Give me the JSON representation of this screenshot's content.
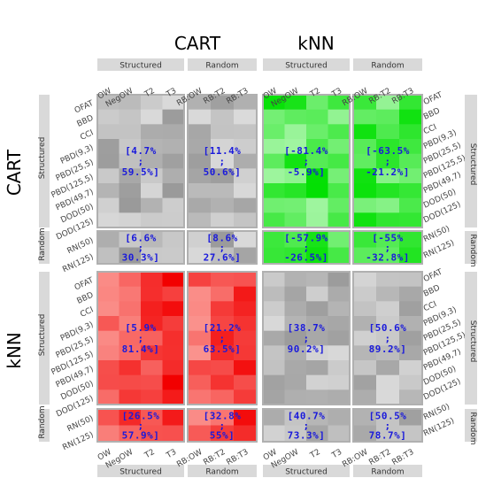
{
  "chart_data": {
    "type": "heatmap",
    "title": "",
    "column_models": [
      "CART",
      "kNN"
    ],
    "row_models": [
      "CART",
      "kNN"
    ],
    "method_groups": [
      "Structured",
      "Random"
    ],
    "columns_structured": [
      "OW",
      "NegOW",
      "T2",
      "T3"
    ],
    "columns_random": [
      "RB:OW",
      "RB:T2",
      "RB:T3"
    ],
    "rows_structured": [
      "OFAT",
      "BBD",
      "CCI",
      "PBD(9,3)",
      "PBD(25,5)",
      "PBD(125,5)",
      "PBD(49,7)",
      "DOD(50)",
      "DOD(125)"
    ],
    "rows_random": [
      "RN(50)",
      "RN(125)"
    ],
    "blocks": [
      {
        "row_model": "CART",
        "row_group": "Structured",
        "col_model": "CART",
        "col_group": "Structured",
        "low": "4.7%",
        "high": "59.5%",
        "scale": "gray"
      },
      {
        "row_model": "CART",
        "row_group": "Structured",
        "col_model": "CART",
        "col_group": "Random",
        "low": "11.4%",
        "high": "50.6%",
        "scale": "gray"
      },
      {
        "row_model": "CART",
        "row_group": "Structured",
        "col_model": "kNN",
        "col_group": "Structured",
        "low": "-81.4%",
        "high": "-5.9%",
        "scale": "green"
      },
      {
        "row_model": "CART",
        "row_group": "Structured",
        "col_model": "kNN",
        "col_group": "Random",
        "low": "-63.5%",
        "high": "-21.2%",
        "scale": "green"
      },
      {
        "row_model": "CART",
        "row_group": "Random",
        "col_model": "CART",
        "col_group": "Structured",
        "low": "6.6%",
        "high": "30.3%",
        "scale": "gray"
      },
      {
        "row_model": "CART",
        "row_group": "Random",
        "col_model": "CART",
        "col_group": "Random",
        "low": "8.6%",
        "high": "27.6%",
        "scale": "gray"
      },
      {
        "row_model": "CART",
        "row_group": "Random",
        "col_model": "kNN",
        "col_group": "Structured",
        "low": "-57.9%",
        "high": "-26.5%",
        "scale": "green"
      },
      {
        "row_model": "CART",
        "row_group": "Random",
        "col_model": "kNN",
        "col_group": "Random",
        "low": "-55%",
        "high": "-32.8%",
        "scale": "green"
      },
      {
        "row_model": "kNN",
        "row_group": "Structured",
        "col_model": "CART",
        "col_group": "Structured",
        "low": "5.9%",
        "high": "81.4%",
        "scale": "red"
      },
      {
        "row_model": "kNN",
        "row_group": "Structured",
        "col_model": "CART",
        "col_group": "Random",
        "low": "21.2%",
        "high": "63.5%",
        "scale": "red"
      },
      {
        "row_model": "kNN",
        "row_group": "Structured",
        "col_model": "kNN",
        "col_group": "Structured",
        "low": "38.7%",
        "high": "90.2%",
        "scale": "gray"
      },
      {
        "row_model": "kNN",
        "row_group": "Structured",
        "col_model": "kNN",
        "col_group": "Random",
        "low": "50.6%",
        "high": "89.2%",
        "scale": "gray"
      },
      {
        "row_model": "kNN",
        "row_group": "Random",
        "col_model": "CART",
        "col_group": "Structured",
        "low": "26.5%",
        "high": "57.9%",
        "scale": "red"
      },
      {
        "row_model": "kNN",
        "row_group": "Random",
        "col_model": "CART",
        "col_group": "Random",
        "low": "32.8%",
        "high": "55%",
        "scale": "red"
      },
      {
        "row_model": "kNN",
        "row_group": "Random",
        "col_model": "kNN",
        "col_group": "Structured",
        "low": "40.7%",
        "high": "73.3%",
        "scale": "gray"
      },
      {
        "row_model": "kNN",
        "row_group": "Random",
        "col_model": "kNN",
        "col_group": "Random",
        "low": "50.5%",
        "high": "78.7%",
        "scale": "gray"
      }
    ],
    "colors": {
      "strip": "#d9d9d9",
      "block_border": "#b0b0b0",
      "block_label": "#1a1adb",
      "gray_low": "#f5f5f5",
      "gray_high": "#8a8a8a",
      "green_low": "#ecffec",
      "green_high": "#00e000",
      "red_low": "#ffe8e0",
      "red_high": "#f20000"
    },
    "legend": "none",
    "grid": false
  }
}
